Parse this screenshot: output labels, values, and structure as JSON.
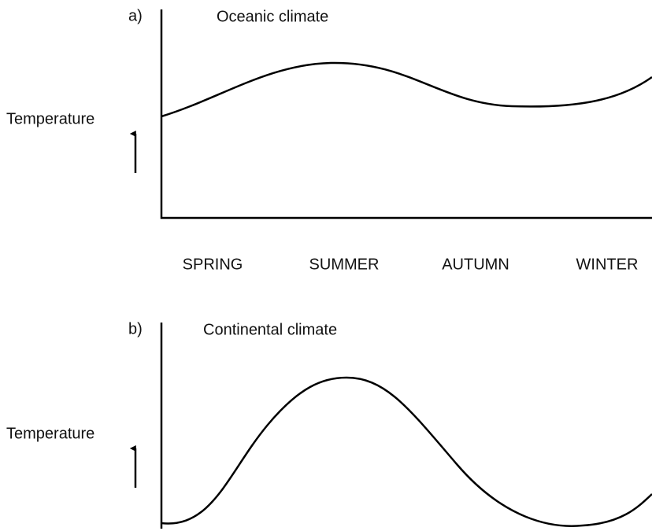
{
  "panels": [
    {
      "label": "a)",
      "title": "Oceanic climate",
      "y_label": "Temperature"
    },
    {
      "label": "b)",
      "title": "Continental climate",
      "y_label": "Temperature"
    }
  ],
  "seasons": [
    "SPRING",
    "SUMMER",
    "AUTUMN",
    "WINTER"
  ]
}
